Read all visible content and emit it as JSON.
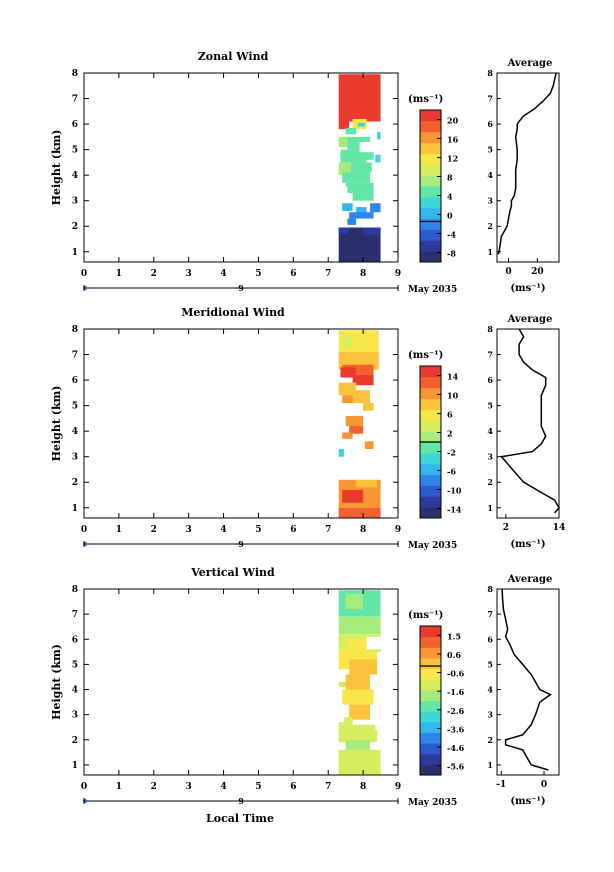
{
  "date_label": "May 2035",
  "xlabel": "Local Time",
  "panel_ylabel": "Height (km)",
  "unit_label": "(ms⁻¹)",
  "avg_title": "Average",
  "colors": [
    "#2b2f6e",
    "#2c3a9e",
    "#2d5ad0",
    "#2f86ea",
    "#33b6ee",
    "#3fd6d6",
    "#63e6a6",
    "#a6ec7c",
    "#d6ee5e",
    "#f8e64a",
    "#fbc23c",
    "#f89634",
    "#f2622e",
    "#e93a2e"
  ],
  "chart_data": [
    {
      "type": "heatmap",
      "title": "Zonal Wind",
      "ylabel": "Height (km)",
      "xlim": [
        0,
        9
      ],
      "ylim": [
        0.6,
        8
      ],
      "xticks": [
        "0",
        "1",
        "2",
        "3",
        "4",
        "5",
        "6",
        "7",
        "8",
        "9"
      ],
      "yticks": [
        "1",
        "2",
        "3",
        "4",
        "5",
        "6",
        "7",
        "8"
      ],
      "day_tick": "9",
      "colorbar": {
        "unit": "(ms⁻¹)",
        "min": -8,
        "max": 22,
        "labels": [
          "20",
          "16",
          "12",
          "8",
          "4",
          "0",
          "-4",
          "-8"
        ]
      },
      "data_x_range": [
        7.3,
        8.5
      ],
      "profile": [
        [
          0.9,
          -7
        ],
        [
          1.2,
          -6
        ],
        [
          1.6,
          -5
        ],
        [
          2.0,
          -1
        ],
        [
          2.3,
          0
        ],
        [
          2.6,
          1
        ],
        [
          2.8,
          2
        ],
        [
          3.0,
          2
        ],
        [
          3.2,
          4
        ],
        [
          3.5,
          5
        ],
        [
          3.8,
          5
        ],
        [
          4.2,
          5
        ],
        [
          4.6,
          6
        ],
        [
          5.0,
          6
        ],
        [
          5.5,
          5
        ],
        [
          5.8,
          6
        ],
        [
          6.0,
          6
        ],
        [
          6.3,
          10
        ],
        [
          6.6,
          18
        ],
        [
          6.9,
          24
        ],
        [
          7.2,
          29
        ],
        [
          7.5,
          31
        ],
        [
          8.0,
          33
        ]
      ],
      "avg_xlim": [
        -8,
        35
      ],
      "avg_xticks": [
        "0",
        "20"
      ],
      "avg_xlabel": "(ms⁻¹)"
    },
    {
      "type": "heatmap",
      "title": "Meridional Wind",
      "ylabel": "Height (km)",
      "xlim": [
        0,
        9
      ],
      "ylim": [
        0.6,
        8
      ],
      "xticks": [
        "0",
        "1",
        "2",
        "3",
        "4",
        "5",
        "6",
        "7",
        "8",
        "9"
      ],
      "yticks": [
        "1",
        "2",
        "3",
        "4",
        "5",
        "6",
        "7",
        "8"
      ],
      "day_tick": "9",
      "colorbar": {
        "unit": "(ms⁻¹)",
        "min": -16,
        "max": 16,
        "labels": [
          "14",
          "10",
          "6",
          "2",
          "-2",
          "-6",
          "-10",
          "-14"
        ]
      },
      "data_x_range": [
        7.3,
        8.5
      ],
      "profile": [
        [
          0.8,
          13
        ],
        [
          1.0,
          14
        ],
        [
          1.3,
          13
        ],
        [
          1.6,
          10
        ],
        [
          2.0,
          6
        ],
        [
          2.4,
          4
        ],
        [
          2.8,
          2
        ],
        [
          3.0,
          1
        ],
        [
          3.2,
          8
        ],
        [
          3.5,
          10
        ],
        [
          3.8,
          11
        ],
        [
          4.2,
          10
        ],
        [
          4.6,
          10
        ],
        [
          5.0,
          10
        ],
        [
          5.4,
          10
        ],
        [
          5.8,
          11
        ],
        [
          6.1,
          11
        ],
        [
          6.4,
          8
        ],
        [
          6.7,
          6
        ],
        [
          7.0,
          5
        ],
        [
          7.4,
          5
        ],
        [
          7.7,
          6
        ],
        [
          8.0,
          5
        ]
      ],
      "avg_xlim": [
        0,
        14
      ],
      "avg_xticks": [
        "2",
        "14"
      ],
      "avg_xlabel": "(ms⁻¹)"
    },
    {
      "type": "heatmap",
      "title": "Vertical Wind",
      "ylabel": "Height (km)",
      "xlim": [
        0,
        9
      ],
      "ylim": [
        0.6,
        8
      ],
      "xticks": [
        "0",
        "1",
        "2",
        "3",
        "4",
        "5",
        "6",
        "7",
        "8",
        "9"
      ],
      "yticks": [
        "1",
        "2",
        "3",
        "4",
        "5",
        "6",
        "7",
        "8"
      ],
      "day_tick": "9",
      "colorbar": {
        "unit": "(ms⁻¹)",
        "min": -6.0,
        "max": 2.2,
        "labels": [
          "1.5",
          "0.6",
          "-0.6",
          "-1.6",
          "-2.6",
          "-3.6",
          "-4.6",
          "-5.6"
        ]
      },
      "data_x_range": [
        7.3,
        8.5
      ],
      "profile": [
        [
          0.8,
          0.1
        ],
        [
          1.0,
          -0.3
        ],
        [
          1.3,
          -0.4
        ],
        [
          1.6,
          -0.5
        ],
        [
          1.8,
          -0.9
        ],
        [
          2.0,
          -0.9
        ],
        [
          2.2,
          -0.5
        ],
        [
          2.6,
          -0.3
        ],
        [
          3.0,
          -0.2
        ],
        [
          3.5,
          -0.1
        ],
        [
          3.8,
          0.15
        ],
        [
          4.0,
          -0.1
        ],
        [
          4.3,
          -0.2
        ],
        [
          4.6,
          -0.3
        ],
        [
          5.0,
          -0.5
        ],
        [
          5.4,
          -0.7
        ],
        [
          5.8,
          -0.8
        ],
        [
          6.1,
          -0.9
        ],
        [
          6.4,
          -0.85
        ],
        [
          6.8,
          -0.9
        ],
        [
          7.2,
          -0.95
        ],
        [
          7.6,
          -0.97
        ],
        [
          8.0,
          -0.98
        ]
      ],
      "avg_xlim": [
        -1.1,
        0.35
      ],
      "avg_xticks": [
        "-1",
        "0"
      ],
      "avg_xlabel": "(ms⁻¹)"
    }
  ]
}
